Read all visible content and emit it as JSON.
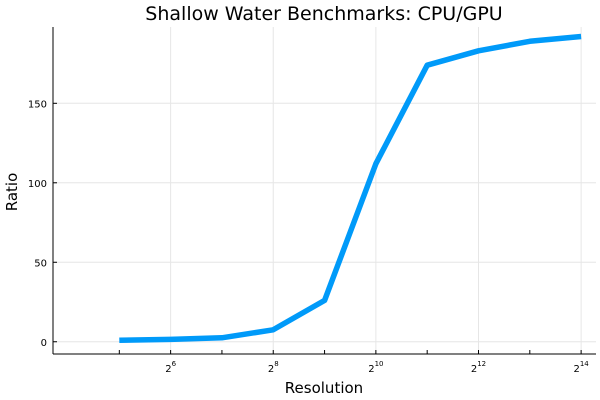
{
  "chart_data": {
    "type": "line",
    "title": "Shallow Water Benchmarks: CPU/GPU",
    "xlabel": "Resolution",
    "ylabel": "Ratio",
    "x_scale": "log2",
    "xlim": [
      16,
      16384
    ],
    "ylim": [
      0,
      200
    ],
    "grid": true,
    "legend": "none",
    "x_ticks": [
      {
        "base": "2",
        "exp": "6",
        "value": 64
      },
      {
        "base": "2",
        "exp": "8",
        "value": 256
      },
      {
        "base": "2",
        "exp": "10",
        "value": 1024
      },
      {
        "base": "2",
        "exp": "12",
        "value": 4096
      },
      {
        "base": "2",
        "exp": "14",
        "value": 16384
      }
    ],
    "y_ticks": [
      "0",
      "50",
      "100",
      "150"
    ],
    "series": [
      {
        "color": "#009af9",
        "x": [
          32,
          64,
          128,
          256,
          512,
          1024,
          2048,
          4096,
          8192,
          16384
        ],
        "y": [
          1,
          1.5,
          2.5,
          7.5,
          26,
          112,
          174,
          183,
          189,
          192
        ]
      }
    ]
  }
}
